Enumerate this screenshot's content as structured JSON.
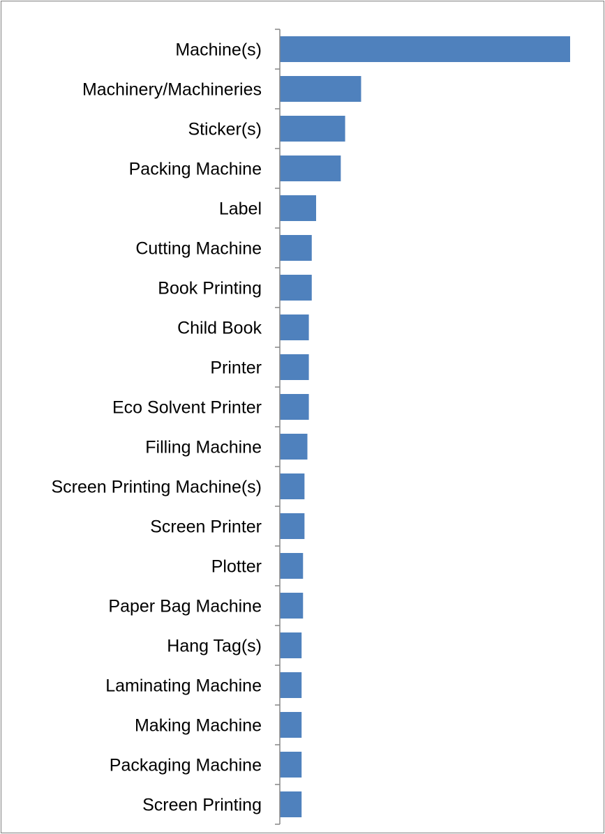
{
  "chart_data": {
    "type": "bar",
    "orientation": "horizontal",
    "title": "",
    "xlabel": "",
    "ylabel": "",
    "grid": false,
    "legend": "none",
    "bar_color": "#4f81bd",
    "axis_color": "#868686",
    "categories": [
      "Machine(s)",
      "Machinery/Machineries",
      "Sticker(s)",
      "Packing Machine",
      "Label",
      "Cutting Machine",
      "Book Printing",
      "Child Book",
      "Printer",
      "Eco Solvent Printer",
      "Filling Machine",
      "Screen Printing Machine(s)",
      "Screen Printer",
      "Plotter",
      "Paper Bag Machine",
      "Hang Tag(s)",
      "Laminating Machine",
      "Making Machine",
      "Packaging Machine",
      "Screen Printing"
    ],
    "values": [
      100,
      28,
      22.5,
      21,
      12.5,
      11,
      11,
      10,
      10,
      10,
      9.5,
      8.5,
      8.5,
      8,
      8,
      7.5,
      7.5,
      7.5,
      7.5,
      7.5
    ],
    "xlim": [
      0,
      100
    ]
  }
}
